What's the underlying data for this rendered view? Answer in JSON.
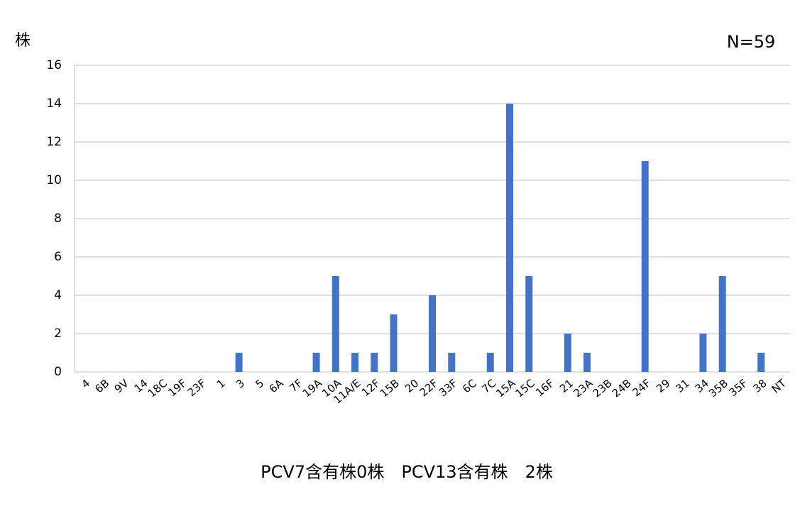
{
  "chart_data": {
    "type": "bar",
    "y_label": "株",
    "annotation": "N=59",
    "note": "PCV7含有株0株　PCV13含有株　2株",
    "categories": [
      "4",
      "6B",
      "9V",
      "14",
      "18C",
      "19F",
      "23F",
      "1",
      "3",
      "5",
      "6A",
      "7F",
      "19A",
      "10A",
      "11A/E",
      "12F",
      "15B",
      "20",
      "22F",
      "33F",
      "6C",
      "7C",
      "15A",
      "15C",
      "16F",
      "21",
      "23A",
      "23B",
      "24B",
      "24F",
      "29",
      "31",
      "34",
      "35B",
      "35F",
      "38",
      "NT"
    ],
    "values": [
      0,
      0,
      0,
      0,
      0,
      0,
      0,
      0,
      1,
      0,
      0,
      0,
      1,
      5,
      1,
      1,
      3,
      0,
      4,
      1,
      0,
      1,
      14,
      5,
      0,
      2,
      1,
      0,
      0,
      11,
      0,
      0,
      2,
      5,
      0,
      1,
      0
    ],
    "color": "#4472c4",
    "ylim": [
      0,
      16
    ],
    "yticks": [
      0,
      2,
      4,
      6,
      8,
      10,
      12,
      14,
      16
    ],
    "grid": true
  }
}
